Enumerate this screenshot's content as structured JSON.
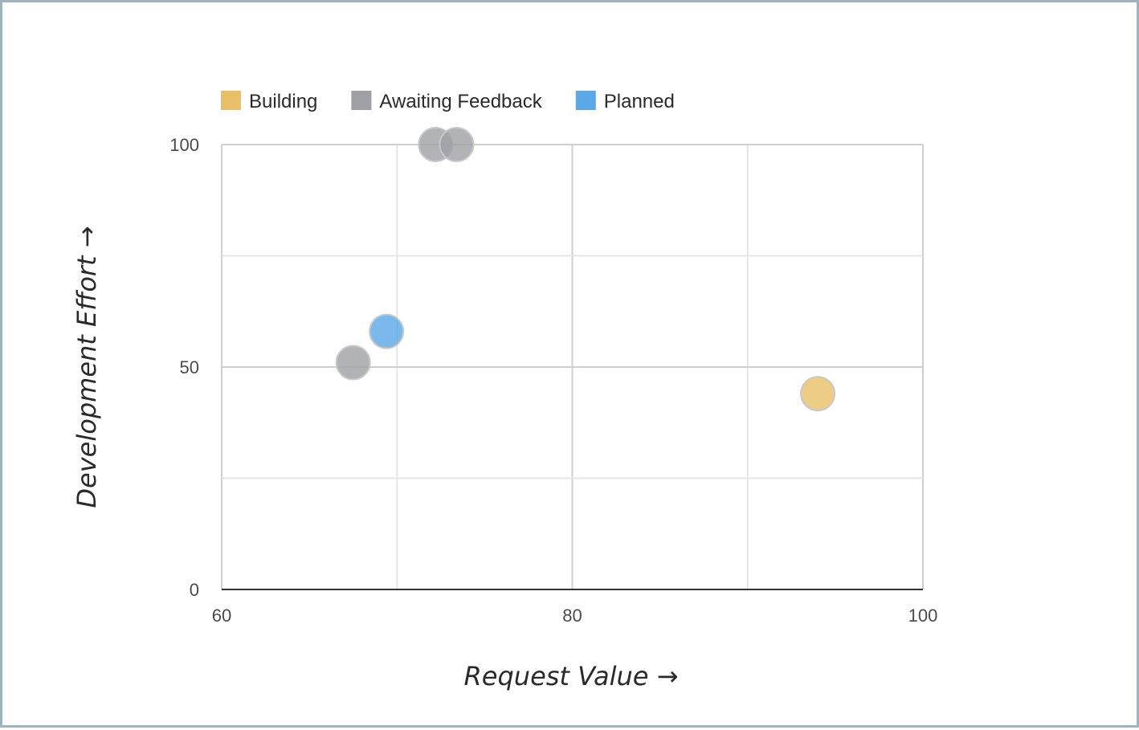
{
  "chart_data": {
    "type": "scatter",
    "xlabel": "Request Value →",
    "ylabel": "Development Effort →",
    "xlim": [
      60,
      100
    ],
    "ylim": [
      0,
      100
    ],
    "x_ticks": [
      "60",
      "80",
      "100"
    ],
    "y_ticks": [
      "0",
      "50",
      "100"
    ],
    "grid": true,
    "legend_position": "top-left",
    "series": [
      {
        "name": "Building",
        "color": "#e8c068",
        "points": [
          {
            "x": 94,
            "y": 44
          }
        ]
      },
      {
        "name": "Awaiting Feedback",
        "color": "#9ea0a5",
        "points": [
          {
            "x": 67.5,
            "y": 51
          },
          {
            "x": 72.2,
            "y": 100
          },
          {
            "x": 73.4,
            "y": 100
          }
        ]
      },
      {
        "name": "Planned",
        "color": "#5aa8e8",
        "points": [
          {
            "x": 69.4,
            "y": 58
          }
        ]
      }
    ]
  }
}
